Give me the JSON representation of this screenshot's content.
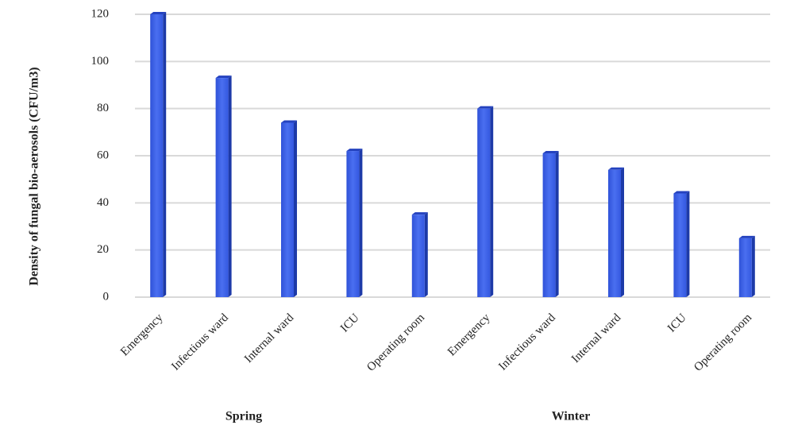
{
  "chart_data": {
    "type": "bar",
    "y_label": "Density of fungal bio-aerosols (CFU/m3)",
    "groups": [
      {
        "name": "Spring",
        "categories": [
          "Emergency",
          "Infectious ward",
          "Internal ward",
          "ICU",
          "Operating room"
        ],
        "values": [
          120,
          93,
          74,
          62,
          35
        ]
      },
      {
        "name": "Winter",
        "categories": [
          "Emergency",
          "Infectious ward",
          "Internal ward",
          "ICU",
          "Operating room"
        ],
        "values": [
          80,
          61,
          54,
          44,
          25
        ]
      }
    ],
    "color": "#3a5ee6",
    "ylim": [
      0,
      120
    ],
    "yticks": [
      0,
      20,
      40,
      60,
      80,
      100,
      120
    ],
    "grid": true
  }
}
